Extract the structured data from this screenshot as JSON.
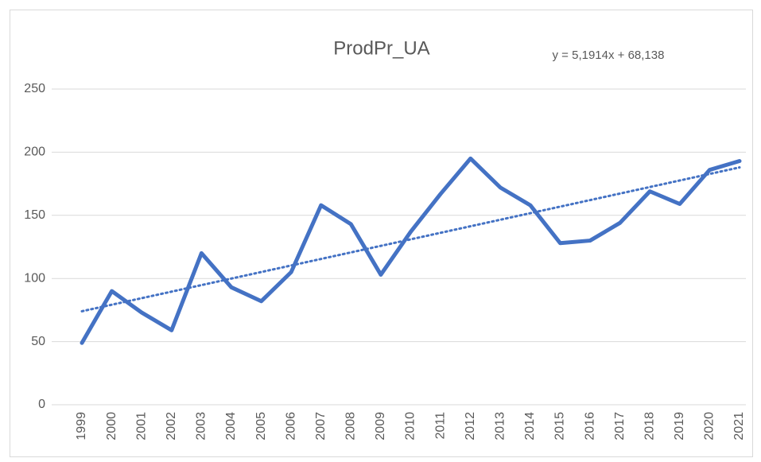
{
  "chart_data": {
    "type": "line",
    "title": "ProdPr_UA",
    "annotations": [
      "y = 5,1914x + 68,138"
    ],
    "categories": [
      "1999",
      "2000",
      "2001",
      "2002",
      "2003",
      "2004",
      "2005",
      "2006",
      "2007",
      "2008",
      "2009",
      "2010",
      "2011",
      "2012",
      "2013",
      "2014",
      "2015",
      "2016",
      "2017",
      "2018",
      "2019",
      "2020",
      "2021"
    ],
    "series": [
      {
        "name": "ProdPr_UA",
        "color": "#4472c4",
        "values": [
          49,
          90,
          73,
          59,
          120,
          93,
          82,
          105,
          158,
          143,
          103,
          137,
          167,
          195,
          172,
          158,
          128,
          130,
          144,
          169,
          159,
          186,
          193
        ]
      }
    ],
    "trendline": "linear",
    "ylim": [
      0,
      250
    ],
    "yticks": [
      0,
      50,
      100,
      150,
      200,
      250
    ],
    "grid": true
  }
}
